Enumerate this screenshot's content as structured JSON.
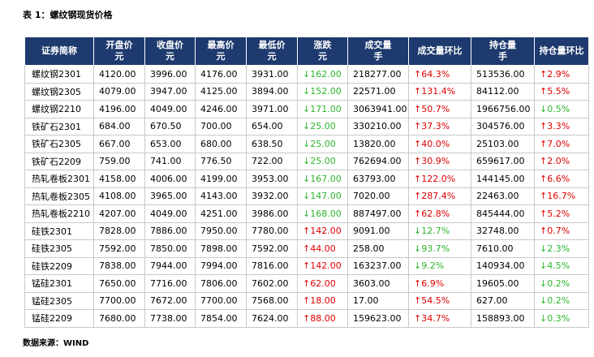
{
  "title": "表 1：螺纹钢现货价格",
  "table": {
    "header": [
      [
        "证券简称"
      ],
      [
        "开盘价",
        "元"
      ],
      [
        "收盘价",
        "元"
      ],
      [
        "最高价",
        "元"
      ],
      [
        "最低价",
        "元"
      ],
      [
        "涨跌",
        "元"
      ],
      [
        "成交量",
        "手"
      ],
      [
        "成交量环比"
      ],
      [
        "持仓量",
        "手"
      ],
      [
        "持仓量环比"
      ]
    ],
    "rows": [
      [
        "螺纹钢2301",
        "4120.00",
        "3996.00",
        "4176.00",
        "3931.00",
        "↓162.00",
        "218277.00",
        "↑64.3%",
        "513536.00",
        "↑2.9%"
      ],
      [
        "螺纹钢2305",
        "4079.00",
        "3947.00",
        "4125.00",
        "3894.00",
        "↓152.00",
        "22571.00",
        "↑131.4%",
        "84112.00",
        "↑5.5%"
      ],
      [
        "螺纹钢2210",
        "4196.00",
        "4049.00",
        "4246.00",
        "3971.00",
        "↓171.00",
        "3063941.00",
        "↑50.7%",
        "1966756.00",
        "↓0.5%"
      ],
      [
        "铁矿石2301",
        "684.00",
        "670.50",
        "700.00",
        "654.00",
        "↓25.00",
        "330210.00",
        "↑37.3%",
        "304576.00",
        "↑3.3%"
      ],
      [
        "铁矿石2305",
        "667.00",
        "653.00",
        "680.00",
        "638.50",
        "↓25.00",
        "13820.00",
        "↑40.0%",
        "25103.00",
        "↑7.0%"
      ],
      [
        "铁矿石2209",
        "759.00",
        "741.00",
        "776.50",
        "722.00",
        "↓25.00",
        "762694.00",
        "↑30.9%",
        "659617.00",
        "↑2.0%"
      ],
      [
        "热轧卷板2301",
        "4158.00",
        "4006.00",
        "4199.00",
        "3953.00",
        "↓167.00",
        "63793.00",
        "↑122.0%",
        "144145.00",
        "↑6.6%"
      ],
      [
        "热轧卷板2305",
        "4108.00",
        "3965.00",
        "4143.00",
        "3932.00",
        "↓147.00",
        "7020.00",
        "↑287.4%",
        "22463.00",
        "↑16.7%"
      ],
      [
        "热轧卷板2210",
        "4207.00",
        "4049.00",
        "4251.00",
        "3986.00",
        "↓168.00",
        "887497.00",
        "↑62.8%",
        "845444.00",
        "↑5.2%"
      ],
      [
        "硅铁2301",
        "7828.00",
        "7886.00",
        "7950.00",
        "7780.00",
        "↑142.00",
        "9091.00",
        "↓12.7%",
        "32748.00",
        "↑0.7%"
      ],
      [
        "硅铁2305",
        "7592.00",
        "7850.00",
        "7898.00",
        "7592.00",
        "↑44.00",
        "258.00",
        "↓93.7%",
        "7610.00",
        "↓2.3%"
      ],
      [
        "硅铁2209",
        "7838.00",
        "7944.00",
        "7994.00",
        "7816.00",
        "↑142.00",
        "163237.00",
        "↓9.2%",
        "140934.00",
        "↓4.5%"
      ],
      [
        "锰硅2301",
        "7650.00",
        "7716.00",
        "7806.00",
        "7602.00",
        "↑62.00",
        "3603.00",
        "↑6.9%",
        "19605.00",
        "↓0.2%"
      ],
      [
        "锰硅2305",
        "7700.00",
        "7672.00",
        "7700.00",
        "7568.00",
        "↑18.00",
        "17.00",
        "↑54.5%",
        "627.00",
        "↓0.2%"
      ],
      [
        "锰硅2209",
        "7680.00",
        "7738.00",
        "7854.00",
        "7624.00",
        "↑88.00",
        "159623.00",
        "↑34.7%",
        "158893.00",
        "↓0.3%"
      ]
    ]
  },
  "source": "数据来源：WIND"
}
